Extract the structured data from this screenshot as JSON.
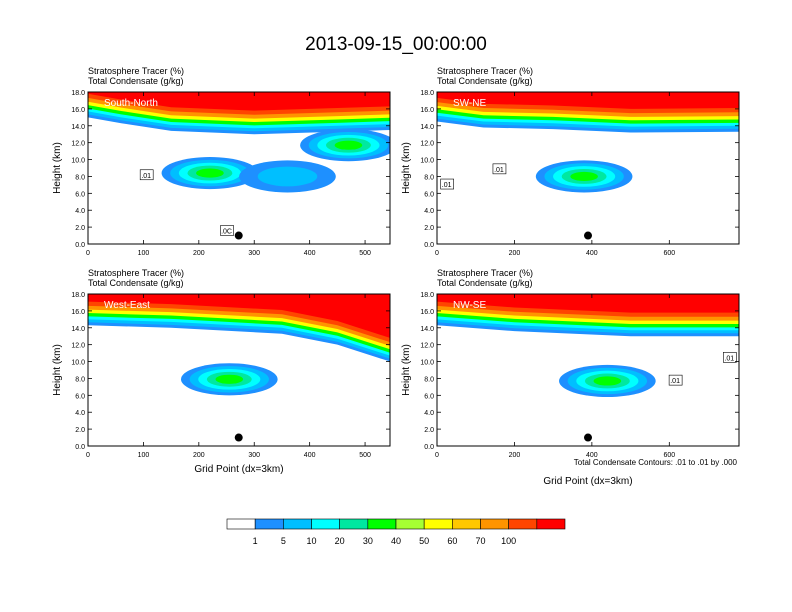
{
  "title": "2013-09-15_00:00:00",
  "chart_data": {
    "type": "heatmap",
    "title": "2013-09-15_00:00:00",
    "colorbar": {
      "levels": [
        "1",
        "5",
        "10",
        "20",
        "30",
        "40",
        "50",
        "60",
        "70",
        "100"
      ],
      "colors": [
        "#ffffff",
        "#1e90ff",
        "#00bfff",
        "#00ffff",
        "#00e8a0",
        "#00ff00",
        "#a6ff33",
        "#ffff00",
        "#ffc800",
        "#ff9400",
        "#ff4500",
        "#ff0000"
      ]
    },
    "contour_note": "Total Condensate Contours: .01 to .01 by .000",
    "panels": [
      {
        "name": "South-North",
        "label1": "Stratosphere Tracer   (%)",
        "label2": "Total Condensate   (g/kg)",
        "ylabel": "Height (km)",
        "xlabel": "",
        "xlim": [
          0,
          545
        ],
        "ylim": [
          0,
          18
        ],
        "xticks": [
          "0",
          "100",
          "200",
          "300",
          "400",
          "500"
        ],
        "xtick_values": [
          0,
          100,
          200,
          300,
          400,
          500
        ],
        "yticks": [
          "0.0",
          "2.0",
          "4.0",
          "6.0",
          "8.0",
          "10.0",
          "12.0",
          "14.0",
          "16.0",
          "18.0"
        ],
        "marker": {
          "x": 272,
          "y": 1.0
        },
        "contour_labels": [
          {
            "text": ".01",
            "x": 105,
            "y": 8.2
          },
          {
            "text": ".0C",
            "x": 250,
            "y": 1.6
          }
        ],
        "stratosphere_top_km": [
          [
            0,
            15.0
          ],
          [
            60,
            14.3
          ],
          [
            150,
            13.4
          ],
          [
            300,
            13.0
          ],
          [
            450,
            13.3
          ],
          [
            545,
            13.5
          ]
        ],
        "tracer_blobs": [
          {
            "x": 220,
            "y": 8.4,
            "level": 30
          },
          {
            "x": 360,
            "y": 8.0,
            "level": 5
          },
          {
            "x": 470,
            "y": 11.7,
            "level": 30
          }
        ]
      },
      {
        "name": "SW-NE",
        "label1": "Stratosphere Tracer   (%)",
        "label2": "Total Condensate   (g/kg)",
        "ylabel": "Height (km)",
        "xlabel": "",
        "xlim": [
          0,
          780
        ],
        "ylim": [
          0,
          18
        ],
        "xticks": [
          "0",
          "200",
          "400",
          "600"
        ],
        "xtick_values": [
          0,
          200,
          400,
          600
        ],
        "yticks": [
          "0.0",
          "2.0",
          "4.0",
          "6.0",
          "8.0",
          "10.0",
          "12.0",
          "14.0",
          "16.0",
          "18.0"
        ],
        "marker": {
          "x": 390,
          "y": 1.0
        },
        "contour_labels": [
          {
            "text": ".01",
            "x": 25,
            "y": 7.1
          },
          {
            "text": ".01",
            "x": 160,
            "y": 8.9
          }
        ],
        "stratosphere_top_km": [
          [
            0,
            14.5
          ],
          [
            120,
            13.8
          ],
          [
            300,
            13.6
          ],
          [
            500,
            13.2
          ],
          [
            780,
            13.3
          ]
        ],
        "tracer_blobs": [
          {
            "x": 380,
            "y": 8.0,
            "level": 30
          }
        ]
      },
      {
        "name": "West-East",
        "label1": "Stratosphere Tracer   (%)",
        "label2": "Total Condensate   (g/kg)",
        "ylabel": "Height (km)",
        "xlabel": "Grid Point (dx=3km)",
        "xlim": [
          0,
          545
        ],
        "ylim": [
          0,
          18
        ],
        "xticks": [
          "0",
          "100",
          "200",
          "300",
          "400",
          "500"
        ],
        "xtick_values": [
          0,
          100,
          200,
          300,
          400,
          500
        ],
        "yticks": [
          "0.0",
          "2.0",
          "4.0",
          "6.0",
          "8.0",
          "10.0",
          "12.0",
          "14.0",
          "16.0",
          "18.0"
        ],
        "marker": {
          "x": 272,
          "y": 1.0
        },
        "contour_labels": [],
        "stratosphere_top_km": [
          [
            0,
            14.3
          ],
          [
            150,
            14.0
          ],
          [
            350,
            13.3
          ],
          [
            450,
            12.0
          ],
          [
            545,
            10.0
          ]
        ],
        "tracer_blobs": [
          {
            "x": 255,
            "y": 7.9,
            "level": 30
          }
        ]
      },
      {
        "name": "NW-SE",
        "label1": "Stratosphere Tracer   (%)",
        "label2": "Total Condensate   (g/kg)",
        "ylabel": "Height (km)",
        "xlabel": "Grid Point (dx=3km)",
        "xlim": [
          0,
          780
        ],
        "ylim": [
          0,
          18
        ],
        "xticks": [
          "0",
          "200",
          "400",
          "600"
        ],
        "xtick_values": [
          0,
          200,
          400,
          600
        ],
        "yticks": [
          "0.0",
          "2.0",
          "4.0",
          "6.0",
          "8.0",
          "10.0",
          "12.0",
          "14.0",
          "16.0",
          "18.0"
        ],
        "marker": {
          "x": 390,
          "y": 1.0
        },
        "contour_labels": [
          {
            "text": ".01",
            "x": 615,
            "y": 7.8
          },
          {
            "text": ".01",
            "x": 755,
            "y": 10.5
          }
        ],
        "stratosphere_top_km": [
          [
            0,
            14.3
          ],
          [
            200,
            13.6
          ],
          [
            500,
            13.0
          ],
          [
            650,
            13.0
          ],
          [
            780,
            13.0
          ]
        ],
        "tracer_blobs": [
          {
            "x": 440,
            "y": 7.7,
            "level": 30
          }
        ]
      }
    ]
  }
}
